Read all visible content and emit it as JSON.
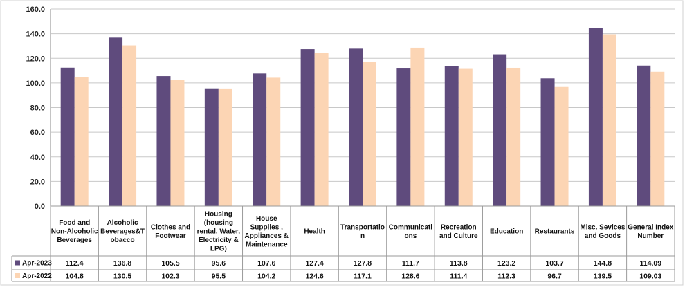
{
  "chart_data": {
    "type": "bar",
    "title": "",
    "xlabel": "",
    "ylabel": "",
    "ylim": [
      0,
      160
    ],
    "yticks": [
      "0.0",
      "20.0",
      "40.0",
      "60.0",
      "80.0",
      "100.0",
      "120.0",
      "140.0",
      "160.0"
    ],
    "grid": true,
    "legend": "bottom-left (inside data table)",
    "categories": [
      "Food and Non-Alcoholic Beverages",
      "Alcoholic Beverages&T obacco",
      "Clothes and Footwear",
      "Housing (housing rental, Water, Electricity & LPG)",
      "House Supplies , Appliances & Maintenance",
      "Health",
      "Transportatio n",
      "Communicati ons",
      "Recreation and Culture",
      "Education",
      "Restaurants",
      "Misc. Sevices and Goods",
      "General Index Number"
    ],
    "category_lines": [
      [
        "Food and",
        "Non-Alcoholic",
        "Beverages"
      ],
      [
        "Alcoholic",
        "Beverages&T",
        "obacco"
      ],
      [
        "Clothes and",
        "Footwear"
      ],
      [
        "Housing",
        "(housing",
        "rental, Water,",
        "Electricity &",
        "LPG)"
      ],
      [
        "House",
        "Supplies ,",
        "Appliances &",
        "Maintenance"
      ],
      [
        "Health"
      ],
      [
        "Transportatio",
        "n"
      ],
      [
        "Communicati",
        "ons"
      ],
      [
        "Recreation",
        "and Culture"
      ],
      [
        "Education"
      ],
      [
        "Restaurants"
      ],
      [
        "Misc. Sevices",
        "and Goods"
      ],
      [
        "General Index",
        "Number"
      ]
    ],
    "series": [
      {
        "name": "Apr-2023",
        "color": "#5f4b7d",
        "values": [
          112.4,
          136.8,
          105.5,
          95.6,
          107.6,
          127.4,
          127.8,
          111.7,
          113.8,
          123.2,
          103.7,
          144.8,
          114.09
        ],
        "labels": [
          "112.4",
          "136.8",
          "105.5",
          "95.6",
          "107.6",
          "127.4",
          "127.8",
          "111.7",
          "113.8",
          "123.2",
          "103.7",
          "144.8",
          "114.09"
        ]
      },
      {
        "name": "Apr-2022",
        "color": "#fcd5b4",
        "values": [
          104.8,
          130.5,
          102.3,
          95.5,
          104.2,
          124.6,
          117.1,
          128.6,
          111.4,
          112.3,
          96.7,
          139.5,
          109.03
        ],
        "labels": [
          "104.8",
          "130.5",
          "102.3",
          "95.5",
          "104.2",
          "124.6",
          "117.1",
          "128.6",
          "111.4",
          "112.3",
          "96.7",
          "139.5",
          "109.03"
        ]
      }
    ]
  }
}
